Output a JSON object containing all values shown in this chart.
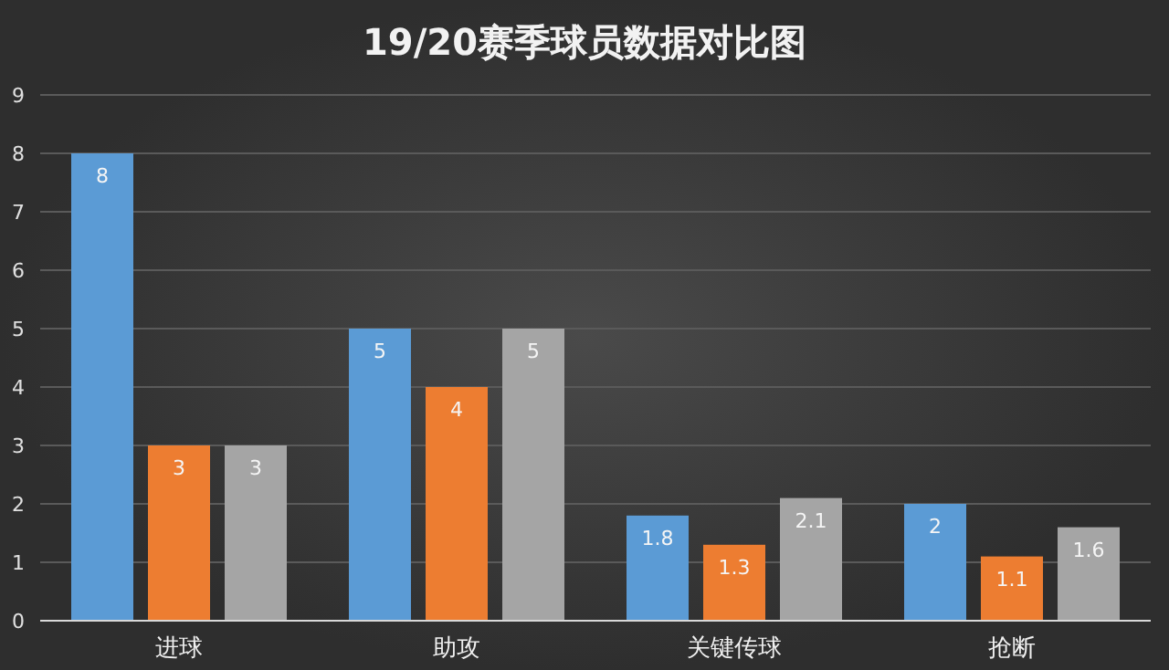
{
  "chart_data": {
    "type": "bar",
    "title": "19/20赛季球员数据对比图",
    "categories": [
      "进球",
      "助攻",
      "关键传球",
      "抢断"
    ],
    "series": [
      {
        "color": "#5b9bd5",
        "values": [
          8,
          5,
          1.8,
          2
        ]
      },
      {
        "color": "#ed7d31",
        "values": [
          3,
          4,
          1.3,
          1.1
        ]
      },
      {
        "color": "#a5a5a5",
        "values": [
          3,
          5,
          2.1,
          1.6
        ]
      }
    ],
    "ylim": [
      0,
      9
    ],
    "yticks": [
      0,
      1,
      2,
      3,
      4,
      5,
      6,
      7,
      8,
      9
    ],
    "grid": "y",
    "data_labels": true
  }
}
